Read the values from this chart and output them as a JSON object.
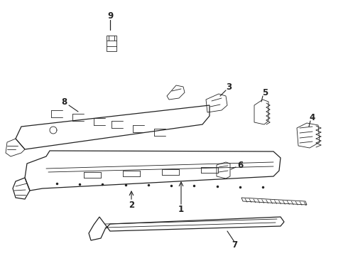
{
  "background_color": "#ffffff",
  "line_color": "#222222",
  "fig_width": 4.9,
  "fig_height": 3.6,
  "dpi": 100
}
